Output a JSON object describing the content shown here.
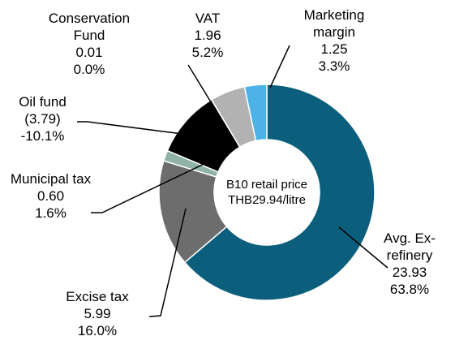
{
  "chart_data": {
    "type": "donut",
    "categories": [
      "Avg. Ex-refinery",
      "Excise tax",
      "Municipal tax",
      "Oil fund",
      "Conservation Fund",
      "VAT",
      "Marketing margin"
    ],
    "values": [
      23.93,
      5.99,
      0.6,
      -3.79,
      0.01,
      1.96,
      1.25
    ],
    "value_labels": [
      "23.93",
      "5.99",
      "0.60",
      "(3.79)",
      "0.01",
      "1.96",
      "1.25"
    ],
    "percents": [
      63.8,
      16.0,
      1.6,
      -10.1,
      0.0,
      5.2,
      3.3
    ],
    "percent_labels": [
      "63.8%",
      "16.0%",
      "1.6%",
      "-10.1%",
      "0.0%",
      "5.2%",
      "3.3%"
    ],
    "colors": [
      "#0b5f7d",
      "#6d6d6d",
      "#8fb3a5",
      "#000000",
      "#ffffff",
      "#b2b2b2",
      "#4db3e6"
    ],
    "center_label": [
      "B10 retail price",
      "THB29.94/litre"
    ]
  }
}
